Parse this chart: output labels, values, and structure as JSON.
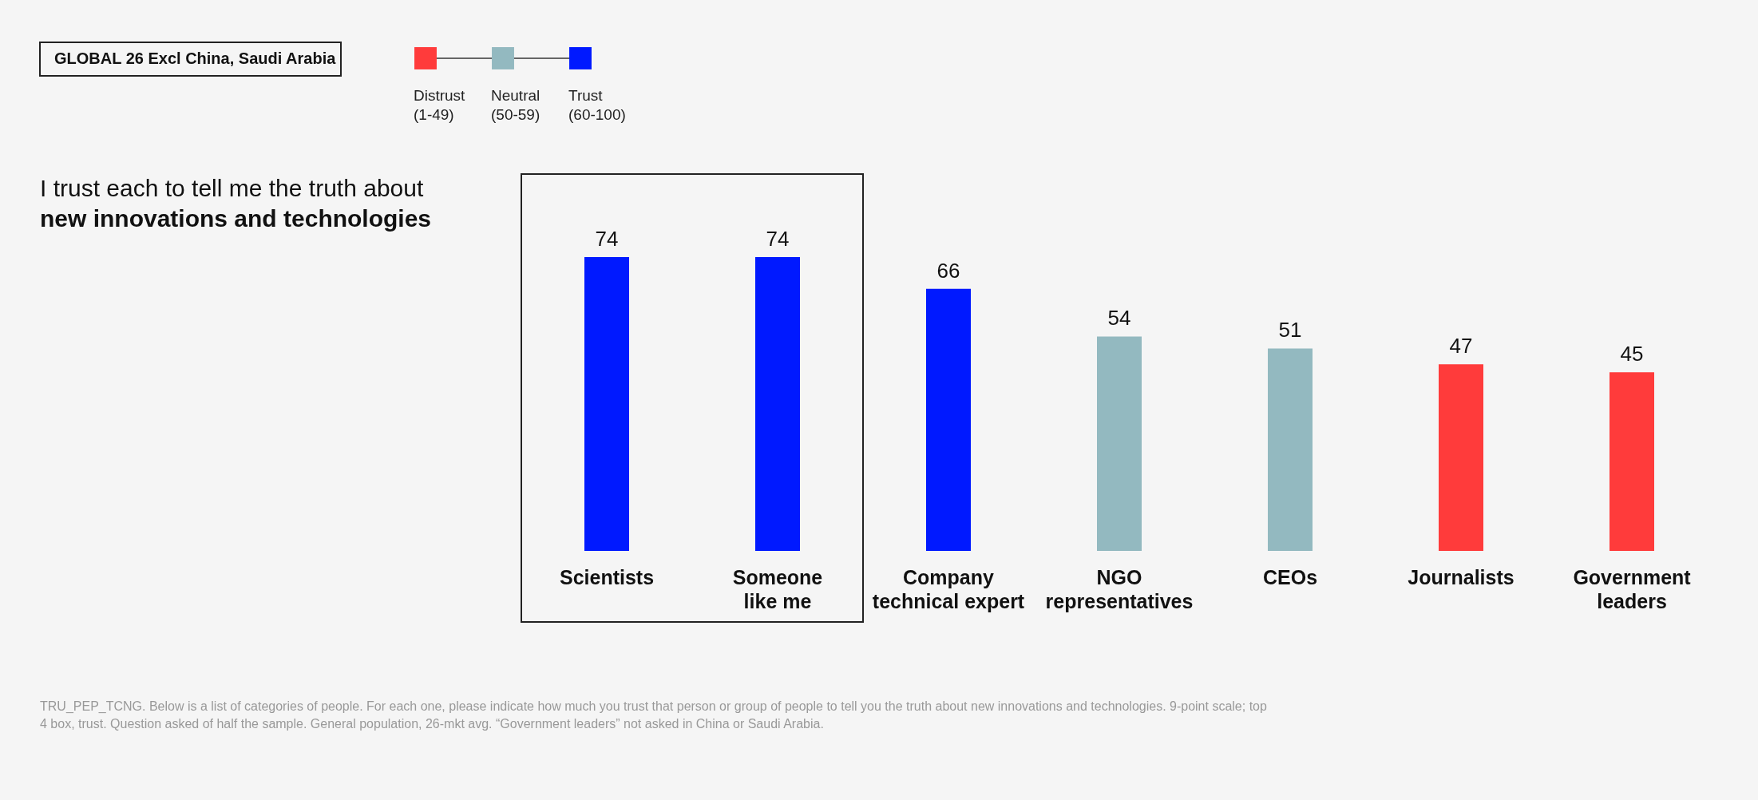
{
  "chart_data": {
    "type": "bar",
    "title": "I trust each to tell me the truth about",
    "subtitle": "new innovations and technologies",
    "categories": [
      "Scientists",
      "Someone\nlike me",
      "Company\ntechnical expert",
      "NGO\nrepresentatives",
      "CEOs",
      "Journalists",
      "Government\nleaders"
    ],
    "series": [
      {
        "name": "Distrust (1-49)",
        "color": "#ff3b3b",
        "values": [
          null,
          null,
          null,
          null,
          null,
          47,
          45
        ]
      },
      {
        "name": "Neutral (50-59)",
        "color": "#93b9c0",
        "values": [
          null,
          null,
          null,
          54,
          51,
          null,
          null
        ]
      },
      {
        "name": "Trust (60-100)",
        "color": "#0019ff",
        "values": [
          74,
          74,
          66,
          null,
          null,
          null,
          null
        ]
      }
    ],
    "data_labels": true,
    "legend": "top left",
    "annotations": [
      "GLOBAL 26 Excl China, Saudi Arabia",
      "TRU_PEP_TCNG. Below is a list of categories of people. For each one, please indicate how much you trust that person or group of people to tell you the truth about new innovations and technologies. 9-point scale; top 4 box, trust. Question asked of half the sample. General population, 26-mkt avg. “Government leaders” not asked in China or Saudi Arabia."
    ]
  }
}
